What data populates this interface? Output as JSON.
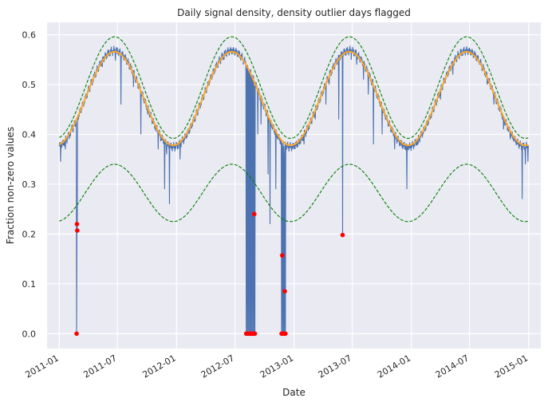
{
  "chart_data": {
    "type": "line",
    "title": "Daily signal density, density outlier days flagged",
    "xlabel": "Date",
    "ylabel": "Fraction non-zero values",
    "xlim": [
      "2010-11-24",
      "2015-02-08"
    ],
    "ylim": [
      -0.03,
      0.625
    ],
    "x_ticks": [
      "2011-01",
      "2011-07",
      "2012-01",
      "2012-07",
      "2013-01",
      "2013-07",
      "2014-01",
      "2014-07",
      "2015-01"
    ],
    "y_ticks": [
      0.0,
      0.1,
      0.2,
      0.3,
      0.4,
      0.5,
      0.6
    ],
    "y_tick_labels": [
      "0.0",
      "0.1",
      "0.2",
      "0.3",
      "0.4",
      "0.5",
      "0.6"
    ],
    "grid": true,
    "background": "#eaeaf2",
    "series": [
      {
        "style": "line",
        "color": "#4c72b0",
        "x_start": "2011-01-01",
        "x_end": "2014-12-31",
        "y_min": 0.375,
        "y_max": 0.568,
        "peak_day_of_year": 172,
        "period_days": 365.25,
        "dips": [
          [
            "2011-01-05",
            0.345
          ],
          [
            "2011-01-20",
            0.37
          ],
          [
            "2011-02-10",
            0.42
          ],
          [
            "2011-03-12",
            0.45
          ],
          [
            "2011-04-08",
            0.5
          ],
          [
            "2011-05-15",
            0.535
          ],
          [
            "2011-06-25",
            0.548
          ],
          [
            "2011-07-12",
            0.46
          ],
          [
            "2011-08-20",
            0.495
          ],
          [
            "2011-09-12",
            0.4
          ],
          [
            "2011-10-03",
            0.44
          ],
          [
            "2011-11-05",
            0.37
          ],
          [
            "2011-11-25",
            0.29
          ],
          [
            "2011-12-01",
            0.36
          ],
          [
            "2011-12-10",
            0.26
          ],
          [
            "2012-01-12",
            0.35
          ],
          [
            "2012-02-20",
            0.42
          ],
          [
            "2012-04-25",
            0.52
          ],
          [
            "2012-05-28",
            0.55
          ],
          [
            "2012-09-10",
            0.4
          ],
          [
            "2012-09-20",
            0.42
          ],
          [
            "2012-10-12",
            0.32
          ],
          [
            "2012-10-18",
            0.22
          ],
          [
            "2012-11-05",
            0.29
          ],
          [
            "2012-12-01",
            0.36
          ],
          [
            "2013-02-01",
            0.38
          ],
          [
            "2013-03-08",
            0.43
          ],
          [
            "2013-04-10",
            0.46
          ],
          [
            "2013-04-20",
            0.5
          ],
          [
            "2013-05-20",
            0.43
          ],
          [
            "2013-06-28",
            0.55
          ],
          [
            "2013-07-15",
            0.54
          ],
          [
            "2013-08-05",
            0.51
          ],
          [
            "2013-08-20",
            0.48
          ],
          [
            "2013-09-05",
            0.38
          ],
          [
            "2013-10-02",
            0.4
          ],
          [
            "2013-11-10",
            0.37
          ],
          [
            "2013-12-18",
            0.29
          ],
          [
            "2014-01-22",
            0.38
          ],
          [
            "2014-03-05",
            0.44
          ],
          [
            "2014-04-02",
            0.47
          ],
          [
            "2014-05-10",
            0.52
          ],
          [
            "2014-08-01",
            0.54
          ],
          [
            "2014-08-25",
            0.5
          ],
          [
            "2014-09-15",
            0.46
          ],
          [
            "2014-10-15",
            0.41
          ],
          [
            "2014-11-05",
            0.39
          ],
          [
            "2014-12-12",
            0.27
          ],
          [
            "2014-12-22",
            0.34
          ],
          [
            "2014-12-30",
            0.345
          ]
        ],
        "outliers": [
          [
            "2011-02-24",
            0.0
          ],
          [
            "2011-02-25",
            0.22
          ],
          [
            "2011-02-26",
            0.207
          ],
          [
            "2012-08-05",
            0.0
          ],
          [
            "2012-08-08",
            0.0
          ],
          [
            "2012-08-11",
            0.0
          ],
          [
            "2012-08-14",
            0.0
          ],
          [
            "2012-08-17",
            0.0
          ],
          [
            "2012-08-20",
            0.0
          ],
          [
            "2012-08-23",
            0.0
          ],
          [
            "2012-08-26",
            0.0
          ],
          [
            "2012-08-29",
            0.0
          ],
          [
            "2012-09-01",
            0.0
          ],
          [
            "2012-08-30",
            0.24
          ],
          [
            "2012-11-23",
            0.0
          ],
          [
            "2012-11-26",
            0.0
          ],
          [
            "2012-11-29",
            0.0
          ],
          [
            "2012-12-02",
            0.0
          ],
          [
            "2012-12-05",
            0.0
          ],
          [
            "2012-11-25",
            0.157
          ],
          [
            "2012-12-03",
            0.085
          ],
          [
            "2013-06-01",
            0.198
          ]
        ]
      },
      {
        "style": "fit",
        "color": "#ffa726",
        "x_start": "2011-01-01",
        "x_end": "2014-12-31",
        "y_min": 0.378,
        "y_max": 0.566,
        "peak_day_of_year": 172
      },
      {
        "style": "bound",
        "color": "#008000",
        "x_start": "2011-01-01",
        "x_end": "2014-12-31",
        "y_min": 0.392,
        "y_max": 0.596,
        "peak_day_of_year": 172
      },
      {
        "style": "bound",
        "color": "#008000",
        "x_start": "2011-01-01",
        "x_end": "2014-12-31",
        "y_min": 0.225,
        "y_max": 0.34,
        "peak_day_of_year": 172
      }
    ],
    "outlier_color": "#ff0000"
  }
}
